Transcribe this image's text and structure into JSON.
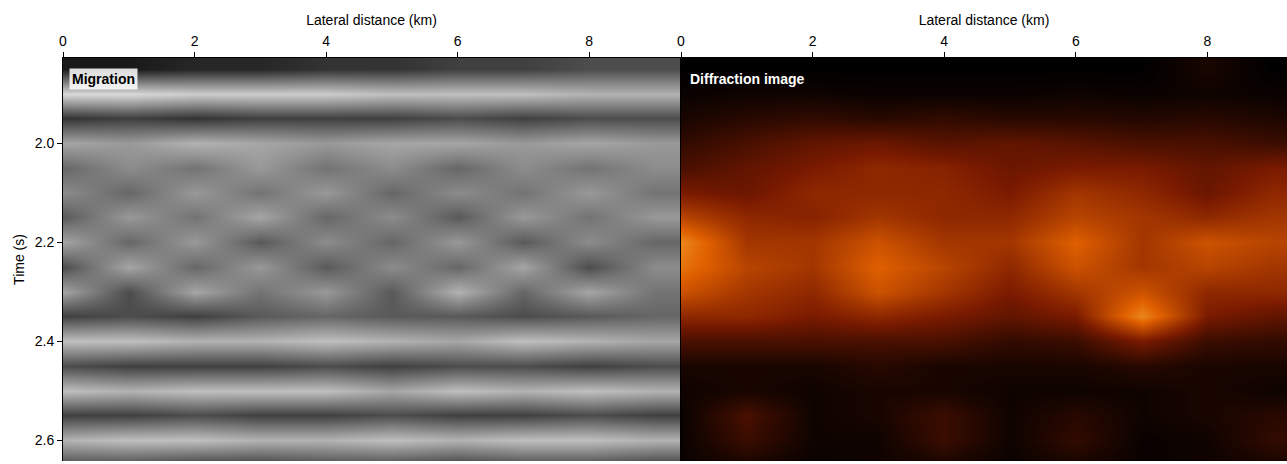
{
  "chart_data": [
    {
      "type": "heatmap",
      "title": "Migration",
      "xlabel": "Lateral distance (km)",
      "ylabel": "Time (s)",
      "xlim": [
        0,
        9.38
      ],
      "ylim": [
        1.828,
        2.642
      ],
      "xticks": [
        0,
        2,
        4,
        6,
        8
      ],
      "yticks": [
        {
          "value": 2.0,
          "label": "2.0"
        },
        {
          "value": 2.2,
          "label": "2.2"
        },
        {
          "value": 2.4,
          "label": "2.4"
        },
        {
          "value": 2.6,
          "label": "2.6"
        }
      ],
      "zlim": [
        -1,
        1
      ],
      "colors": [
        "#000000",
        "#ffffff"
      ],
      "x": [
        0,
        1,
        2,
        3,
        4,
        5,
        6,
        7,
        8,
        9
      ],
      "y": [
        1.85,
        1.9,
        1.95,
        2.0,
        2.05,
        2.1,
        2.15,
        2.2,
        2.25,
        2.3,
        2.35,
        2.4,
        2.45,
        2.5,
        2.55,
        2.6,
        2.65
      ],
      "z": [
        [
          -0.8,
          -0.8,
          -0.7,
          -0.7,
          -0.6,
          -0.6,
          -0.5,
          -0.5,
          -0.4,
          -0.4
        ],
        [
          0.7,
          0.7,
          0.6,
          0.6,
          0.6,
          0.5,
          0.5,
          0.5,
          0.4,
          0.4
        ],
        [
          -0.6,
          -0.5,
          -0.6,
          -0.5,
          -0.5,
          -0.5,
          -0.4,
          -0.5,
          -0.4,
          -0.4
        ],
        [
          0.3,
          0.2,
          0.4,
          0.3,
          0.2,
          0.3,
          0.3,
          0.2,
          0.3,
          0.2
        ],
        [
          -0.2,
          0.1,
          -0.1,
          0.2,
          -0.1,
          0.1,
          -0.2,
          0.1,
          -0.1,
          0.1
        ],
        [
          0.1,
          -0.2,
          0.2,
          -0.1,
          0.2,
          -0.2,
          0.1,
          -0.1,
          0.2,
          -0.1
        ],
        [
          -0.3,
          0.2,
          -0.1,
          0.3,
          -0.2,
          0.1,
          -0.3,
          0.2,
          -0.1,
          0.2
        ],
        [
          0.3,
          -0.2,
          0.2,
          -0.3,
          0.1,
          -0.2,
          0.2,
          -0.3,
          0.1,
          -0.2
        ],
        [
          -0.4,
          0.3,
          -0.2,
          0.2,
          -0.3,
          0.1,
          -0.2,
          0.3,
          -0.4,
          0.1
        ],
        [
          0.3,
          -0.4,
          0.3,
          -0.1,
          0.2,
          -0.3,
          0.4,
          -0.2,
          0.3,
          -0.1
        ],
        [
          -0.5,
          -0.4,
          -0.5,
          -0.3,
          -0.2,
          -0.3,
          -0.3,
          -0.4,
          -0.3,
          -0.2
        ],
        [
          0.5,
          0.5,
          0.4,
          0.4,
          0.5,
          0.4,
          0.3,
          0.5,
          0.4,
          0.3
        ],
        [
          -0.4,
          -0.5,
          -0.5,
          -0.5,
          -0.4,
          -0.5,
          -0.4,
          -0.4,
          -0.5,
          -0.4
        ],
        [
          0.5,
          0.4,
          0.5,
          0.5,
          0.5,
          0.3,
          0.5,
          0.4,
          0.5,
          0.4
        ],
        [
          -0.5,
          -0.5,
          -0.4,
          -0.5,
          -0.5,
          -0.4,
          -0.5,
          -0.5,
          -0.4,
          -0.5
        ],
        [
          0.4,
          0.5,
          0.5,
          0.4,
          0.4,
          0.5,
          0.4,
          0.5,
          0.5,
          0.4
        ],
        [
          -0.4,
          -0.4,
          -0.5,
          -0.5,
          -0.4,
          -0.4,
          -0.5,
          -0.4,
          -0.4,
          -0.5
        ]
      ]
    },
    {
      "type": "heatmap",
      "title": "Diffraction image",
      "xlabel": "Lateral distance (km)",
      "tick_labels": "x",
      "xlim": [
        0,
        9.21
      ],
      "ylim": [
        1.828,
        2.642
      ],
      "xticks": [
        0,
        2,
        4,
        6,
        8
      ],
      "zlim": [
        0,
        1
      ],
      "colors": [
        "#000000",
        "#7a1a00",
        "#e06000",
        "#ffc040",
        "#ffffff"
      ],
      "x": [
        0,
        1,
        2,
        3,
        4,
        5,
        6,
        7,
        8,
        9
      ],
      "y": [
        1.85,
        1.9,
        1.95,
        2.0,
        2.05,
        2.1,
        2.15,
        2.2,
        2.25,
        2.3,
        2.35,
        2.4,
        2.45,
        2.5,
        2.55,
        2.6,
        2.65
      ],
      "z": [
        [
          0,
          0,
          0,
          0,
          0,
          0,
          0,
          0,
          0.05,
          0
        ],
        [
          0.02,
          0.03,
          0.03,
          0.02,
          0.02,
          0.02,
          0.03,
          0.02,
          0.03,
          0.02
        ],
        [
          0.05,
          0.08,
          0.1,
          0.08,
          0.1,
          0.08,
          0.08,
          0.07,
          0.08,
          0.06
        ],
        [
          0.1,
          0.15,
          0.2,
          0.22,
          0.18,
          0.2,
          0.18,
          0.15,
          0.15,
          0.12
        ],
        [
          0.15,
          0.2,
          0.25,
          0.3,
          0.28,
          0.22,
          0.25,
          0.25,
          0.2,
          0.25
        ],
        [
          0.25,
          0.22,
          0.3,
          0.3,
          0.3,
          0.25,
          0.35,
          0.3,
          0.22,
          0.3
        ],
        [
          0.4,
          0.3,
          0.28,
          0.35,
          0.3,
          0.3,
          0.4,
          0.35,
          0.3,
          0.35
        ],
        [
          0.6,
          0.35,
          0.35,
          0.45,
          0.35,
          0.35,
          0.5,
          0.35,
          0.45,
          0.4
        ],
        [
          0.55,
          0.4,
          0.35,
          0.5,
          0.4,
          0.3,
          0.45,
          0.35,
          0.4,
          0.35
        ],
        [
          0.45,
          0.35,
          0.3,
          0.45,
          0.35,
          0.25,
          0.35,
          0.45,
          0.3,
          0.3
        ],
        [
          0.3,
          0.3,
          0.25,
          0.3,
          0.25,
          0.2,
          0.25,
          0.6,
          0.25,
          0.2
        ],
        [
          0.15,
          0.15,
          0.15,
          0.15,
          0.15,
          0.1,
          0.12,
          0.25,
          0.12,
          0.1
        ],
        [
          0.05,
          0.05,
          0.05,
          0.08,
          0.05,
          0.05,
          0.05,
          0.08,
          0.05,
          0.05
        ],
        [
          0.03,
          0.05,
          0.03,
          0.05,
          0.05,
          0.03,
          0.03,
          0.03,
          0.05,
          0.03
        ],
        [
          0.02,
          0.15,
          0.03,
          0.05,
          0.12,
          0.03,
          0.08,
          0.03,
          0.05,
          0.08
        ],
        [
          0.02,
          0.12,
          0.03,
          0.03,
          0.12,
          0.03,
          0.1,
          0.02,
          0.03,
          0.1
        ],
        [
          0.02,
          0.05,
          0.02,
          0.03,
          0.05,
          0.02,
          0.05,
          0.02,
          0.03,
          0.05
        ]
      ]
    }
  ]
}
